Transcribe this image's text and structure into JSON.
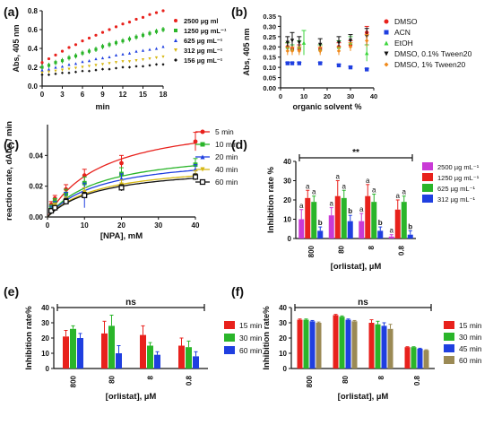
{
  "figure": {
    "colors": {
      "red": "#e8211c",
      "green": "#2ab52a",
      "blue": "#1f3fe0",
      "yellow": "#d6b712",
      "black": "#111111",
      "orange": "#f08a1c",
      "cyan_green": "#3cd63c",
      "magenta": "#c93ad6",
      "olive": "#9b8a55"
    }
  },
  "chart_data": [
    {
      "panel": "(a)",
      "type": "scatter",
      "xlabel": "min",
      "ylabel": "Abs, 405 nm",
      "xlim": [
        0,
        18
      ],
      "ylim": [
        0.0,
        0.8
      ],
      "xticks": [
        "0",
        "3",
        "6",
        "9",
        "12",
        "15",
        "18"
      ],
      "yticks": [
        "0.0",
        "0.2",
        "0.4",
        "0.6",
        "0.8"
      ],
      "legend_position": "right",
      "series": [
        {
          "name": "2500 µg ml",
          "color": "#e8211c",
          "x": [
            0,
            1,
            2,
            3,
            4,
            5,
            6,
            7,
            8,
            9,
            10,
            11,
            12,
            13,
            14,
            15,
            16,
            17,
            18
          ],
          "y": [
            0.25,
            0.29,
            0.33,
            0.37,
            0.41,
            0.44,
            0.48,
            0.51,
            0.54,
            0.57,
            0.6,
            0.63,
            0.66,
            0.68,
            0.71,
            0.73,
            0.76,
            0.78,
            0.8
          ]
        },
        {
          "name": "1250 µg mL⁻¹",
          "color": "#2ab52a",
          "x": [
            0,
            1,
            2,
            3,
            4,
            5,
            6,
            7,
            8,
            9,
            10,
            11,
            12,
            13,
            14,
            15,
            16,
            17,
            18
          ],
          "y": [
            0.2,
            0.22,
            0.25,
            0.27,
            0.3,
            0.32,
            0.35,
            0.37,
            0.39,
            0.42,
            0.44,
            0.46,
            0.48,
            0.5,
            0.52,
            0.54,
            0.56,
            0.58,
            0.6
          ]
        },
        {
          "name": "625 µg mL⁻¹",
          "color": "#1f3fe0",
          "x": [
            0,
            1,
            2,
            3,
            4,
            5,
            6,
            7,
            8,
            9,
            10,
            11,
            12,
            13,
            14,
            15,
            16,
            17,
            18
          ],
          "y": [
            0.17,
            0.18,
            0.2,
            0.21,
            0.23,
            0.24,
            0.26,
            0.27,
            0.29,
            0.3,
            0.31,
            0.33,
            0.34,
            0.35,
            0.37,
            0.38,
            0.39,
            0.4,
            0.42
          ]
        },
        {
          "name": "312 µg mL⁻¹",
          "color": "#d6b712",
          "x": [
            0,
            1,
            2,
            3,
            4,
            5,
            6,
            7,
            8,
            9,
            10,
            11,
            12,
            13,
            14,
            15,
            16,
            17,
            18
          ],
          "y": [
            0.14,
            0.15,
            0.16,
            0.17,
            0.18,
            0.19,
            0.2,
            0.21,
            0.22,
            0.23,
            0.24,
            0.25,
            0.26,
            0.26,
            0.27,
            0.28,
            0.29,
            0.3,
            0.31
          ]
        },
        {
          "name": "156 µg mL⁻¹",
          "color": "#111111",
          "x": [
            0,
            1,
            2,
            3,
            4,
            5,
            6,
            7,
            8,
            9,
            10,
            11,
            12,
            13,
            14,
            15,
            16,
            17,
            18
          ],
          "y": [
            0.12,
            0.12,
            0.13,
            0.14,
            0.14,
            0.15,
            0.16,
            0.16,
            0.17,
            0.18,
            0.18,
            0.19,
            0.2,
            0.2,
            0.21,
            0.21,
            0.22,
            0.23,
            0.23
          ]
        }
      ]
    },
    {
      "panel": "(b)",
      "type": "scatter",
      "xlabel": "organic solvent %",
      "ylabel": "Abs, 405 nm",
      "xlim": [
        0,
        40
      ],
      "ylim": [
        0.0,
        0.35
      ],
      "xticks": [
        "0",
        "10",
        "20",
        "30",
        "40"
      ],
      "yticks": [
        "0.00",
        "0.05",
        "0.10",
        "0.15",
        "0.20",
        "0.25",
        "0.30",
        "0.35"
      ],
      "legend_position": "right",
      "series": [
        {
          "name": "DMSO",
          "color": "#e8211c",
          "x": [
            3,
            5,
            8,
            17,
            25,
            30,
            37
          ],
          "y": [
            0.2,
            0.19,
            0.19,
            0.19,
            0.2,
            0.21,
            0.27
          ],
          "err": [
            0.02,
            0.02,
            0.02,
            0.02,
            0.02,
            0.02,
            0.03
          ]
        },
        {
          "name": "ACN",
          "color": "#1f3fe0",
          "x": [
            3,
            5,
            8,
            17,
            25,
            30,
            37
          ],
          "y": [
            0.12,
            0.12,
            0.12,
            0.12,
            0.11,
            0.1,
            0.09
          ],
          "err": [
            0.005,
            0.005,
            0.005,
            0.005,
            0.005,
            0.005,
            0.005
          ]
        },
        {
          "name": "EtOH",
          "color": "#3cd63c",
          "x": [
            3,
            5,
            8,
            10,
            17,
            25,
            30,
            37
          ],
          "y": [
            0.2,
            0.19,
            0.2,
            0.22,
            0.19,
            0.2,
            0.22,
            0.17
          ],
          "err": [
            0.02,
            0.02,
            0.03,
            0.06,
            0.02,
            0.03,
            0.03,
            0.04
          ]
        },
        {
          "name": "DMSO, 0.1% Tween20",
          "color": "#111111",
          "x": [
            3,
            5,
            8,
            17,
            25,
            30,
            37
          ],
          "y": [
            0.22,
            0.23,
            0.22,
            0.21,
            0.22,
            0.23,
            0.25
          ],
          "err": [
            0.03,
            0.04,
            0.03,
            0.03,
            0.03,
            0.03,
            0.04
          ]
        },
        {
          "name": "DMSO, 1% Tween20",
          "color": "#f08a1c",
          "x": [
            3,
            5,
            8,
            17,
            25,
            30,
            37
          ],
          "y": [
            0.18,
            0.18,
            0.18,
            0.18,
            0.18,
            0.2,
            0.23
          ],
          "err": [
            0.02,
            0.02,
            0.02,
            0.02,
            0.02,
            0.02,
            0.03
          ]
        }
      ]
    },
    {
      "panel": "(c)",
      "type": "scatter",
      "xlabel": "[NPA], mM",
      "ylabel": "reaction rate, dAbs / min",
      "xlim": [
        0,
        40
      ],
      "ylim": [
        0.0,
        0.06
      ],
      "xticks": [
        "0",
        "10",
        "20",
        "30",
        "40"
      ],
      "yticks": [
        "0.00",
        "0.02",
        "0.04"
      ],
      "legend_position": "right",
      "series": [
        {
          "name": "5 min",
          "color": "#e8211c",
          "x": [
            1,
            2,
            5,
            10,
            20,
            40
          ],
          "y": [
            0.008,
            0.012,
            0.018,
            0.027,
            0.035,
            0.049
          ],
          "err": [
            0.002,
            0.002,
            0.003,
            0.004,
            0.005,
            0.006
          ],
          "vmax": 0.066,
          "km": 15
        },
        {
          "name": "10 min",
          "color": "#2ab52a",
          "x": [
            1,
            2,
            5,
            10,
            20,
            40
          ],
          "y": [
            0.006,
            0.01,
            0.015,
            0.022,
            0.028,
            0.034
          ],
          "err": [
            0.002,
            0.002,
            0.003,
            0.004,
            0.004,
            0.004
          ],
          "vmax": 0.045,
          "km": 14
        },
        {
          "name": "20 min",
          "color": "#1f3fe0",
          "x": [
            1,
            2,
            5,
            10,
            20,
            40
          ],
          "y": [
            0.005,
            0.008,
            0.013,
            0.014,
            0.025,
            0.031
          ],
          "err": [
            0.002,
            0.002,
            0.003,
            0.008,
            0.003,
            0.003
          ],
          "vmax": 0.041,
          "km": 14
        },
        {
          "name": "40 min",
          "color": "#d6b712",
          "x": [
            1,
            2,
            5,
            10,
            20,
            40
          ],
          "y": [
            0.004,
            0.007,
            0.011,
            0.016,
            0.021,
            0.027
          ],
          "err": [
            0.001,
            0.002,
            0.002,
            0.003,
            0.003,
            0.003
          ],
          "vmax": 0.036,
          "km": 14
        },
        {
          "name": "60 min",
          "color": "#111111",
          "x": [
            1,
            2,
            5,
            10,
            20,
            40
          ],
          "y": [
            0.004,
            0.006,
            0.01,
            0.014,
            0.019,
            0.026
          ],
          "err": [
            0.001,
            0.001,
            0.002,
            0.002,
            0.002,
            0.002
          ],
          "vmax": 0.034,
          "km": 14
        }
      ]
    },
    {
      "panel": "(d)",
      "type": "bar",
      "xlabel": "[orlistat], µM",
      "ylabel": "Inhibition rate %",
      "categories": [
        "800",
        "80",
        "8",
        "0.8"
      ],
      "ylim": [
        0,
        40
      ],
      "yticks": [
        "0",
        "10",
        "20",
        "30",
        "40"
      ],
      "significance": "**",
      "legend_position": "right",
      "series": [
        {
          "name": "2500 µg mL⁻¹",
          "color": "#c93ad6",
          "values": [
            10,
            12,
            9,
            1
          ],
          "err": [
            5,
            4,
            4,
            1
          ],
          "labels": [
            "a",
            "a",
            "a",
            "a"
          ]
        },
        {
          "name": "1250 µg mL⁻¹",
          "color": "#e8211c",
          "values": [
            21,
            22,
            22,
            15
          ],
          "err": [
            4,
            8,
            6,
            5
          ],
          "labels": [
            "a",
            "a",
            "a",
            "a"
          ]
        },
        {
          "name": "625 µg mL⁻¹",
          "color": "#2ab52a",
          "values": [
            19,
            21,
            19,
            19
          ],
          "err": [
            3,
            4,
            4,
            3
          ],
          "labels": [
            "a",
            "a",
            "a",
            "a"
          ]
        },
        {
          "name": "312 µg mL⁻¹",
          "color": "#1f3fe0",
          "values": [
            4,
            9,
            4,
            2
          ],
          "err": [
            2,
            3,
            2,
            2
          ],
          "labels": [
            "b",
            "b",
            "b",
            "b"
          ]
        }
      ]
    },
    {
      "panel": "(e)",
      "type": "bar",
      "xlabel": "[orlistat], µM",
      "ylabel": "Inhibition rate%",
      "categories": [
        "800",
        "80",
        "8",
        "0.8"
      ],
      "ylim": [
        0,
        40
      ],
      "yticks": [
        "0",
        "10",
        "20",
        "30",
        "40"
      ],
      "significance": "ns",
      "legend_position": "right",
      "series": [
        {
          "name": "15 min",
          "color": "#e8211c",
          "values": [
            21,
            23,
            22,
            15
          ],
          "err": [
            4,
            8,
            6,
            5
          ]
        },
        {
          "name": "30 min",
          "color": "#2ab52a",
          "values": [
            26,
            28,
            15,
            14
          ],
          "err": [
            2,
            7,
            2,
            4
          ]
        },
        {
          "name": "60 min",
          "color": "#1f3fe0",
          "values": [
            20,
            10,
            9,
            8
          ],
          "err": [
            3,
            5,
            2,
            3
          ]
        }
      ]
    },
    {
      "panel": "(f)",
      "type": "bar",
      "xlabel": "[orlistat], µM",
      "ylabel": "Inhibition rate%",
      "categories": [
        "800",
        "80",
        "8",
        "0.8"
      ],
      "ylim": [
        0,
        40
      ],
      "yticks": [
        "0",
        "10",
        "20",
        "30",
        "40"
      ],
      "significance": "ns",
      "legend_position": "right",
      "series": [
        {
          "name": "15 min",
          "color": "#e8211c",
          "values": [
            32,
            35,
            30,
            14
          ],
          "err": [
            0.5,
            0.5,
            2,
            0.3
          ]
        },
        {
          "name": "30 min",
          "color": "#2ab52a",
          "values": [
            32,
            34,
            29,
            14
          ],
          "err": [
            0.5,
            0.5,
            2,
            0.3
          ]
        },
        {
          "name": "45 min",
          "color": "#1f3fe0",
          "values": [
            31,
            32,
            28,
            13
          ],
          "err": [
            0.5,
            0.5,
            2,
            0.3
          ]
        },
        {
          "name": "60 min",
          "color": "#9b8a55",
          "values": [
            30,
            31,
            26,
            12
          ],
          "err": [
            0.5,
            0.5,
            3,
            0.3
          ]
        }
      ]
    }
  ]
}
